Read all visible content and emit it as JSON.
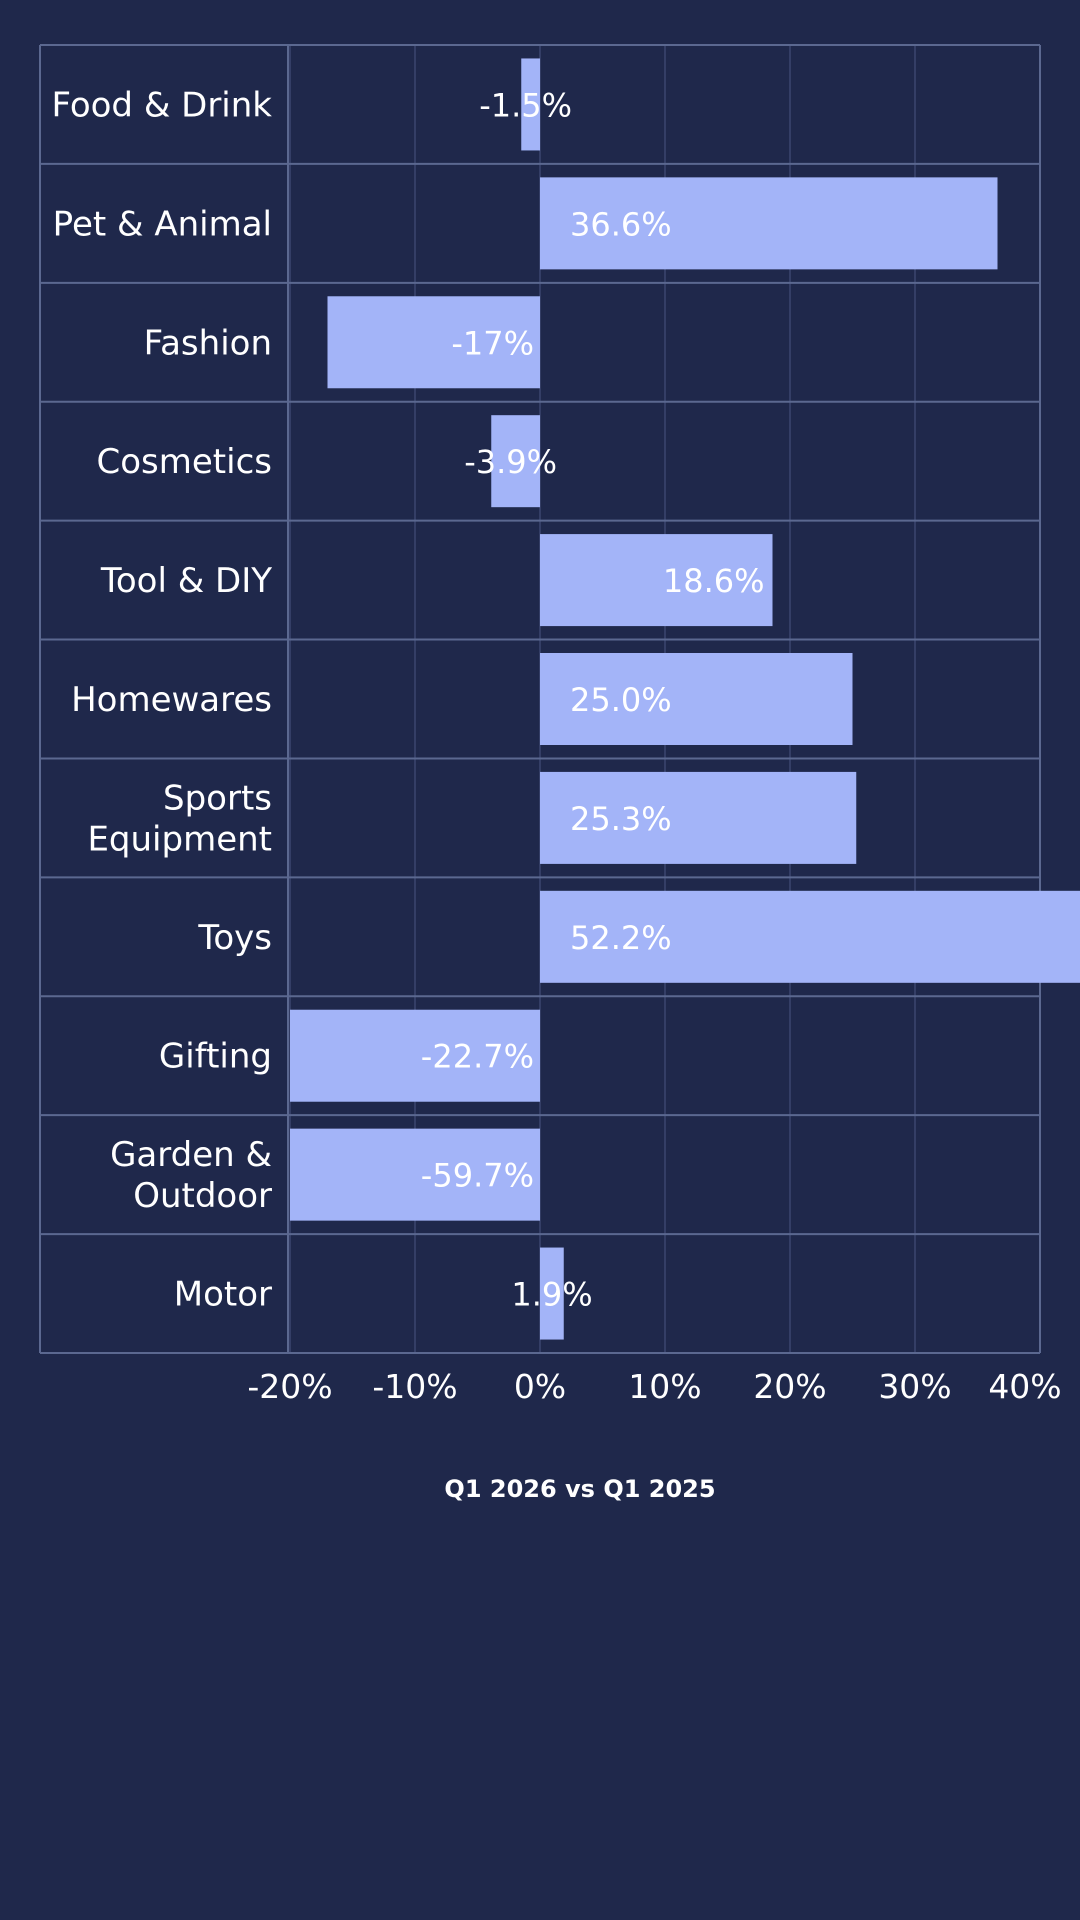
{
  "chart_data": {
    "type": "bar",
    "orientation": "horizontal",
    "categories": [
      "Food & Drink",
      "Pet & Animal",
      "Fashion",
      "Cosmetics",
      "Tool & DIY",
      "Homewares",
      "Sports Equipment",
      "Toys",
      "Gifting",
      "Garden & Outdoor",
      "Motor"
    ],
    "category_lines": [
      [
        "Food & Drink"
      ],
      [
        "Pet & Animal"
      ],
      [
        "Fashion"
      ],
      [
        "Cosmetics"
      ],
      [
        "Tool & DIY"
      ],
      [
        "Homewares"
      ],
      [
        "Sports",
        "Equipment"
      ],
      [
        "Toys"
      ],
      [
        "Gifting"
      ],
      [
        "Garden &",
        "Outdoor"
      ],
      [
        "Motor"
      ]
    ],
    "values": [
      -1.5,
      36.6,
      -17,
      -3.9,
      18.6,
      25.0,
      25.3,
      52.2,
      -22.7,
      -59.7,
      1.9
    ],
    "value_labels": [
      "-1.5%",
      "36.6%",
      "-17%",
      "-3.9%",
      "18.6%",
      "25.0%",
      "25.3%",
      "52.2%",
      "-22.7%",
      "-59.7%",
      "1.9%"
    ],
    "xlim": [
      -20,
      40
    ],
    "x_ticks": [
      -20,
      -10,
      0,
      10,
      20,
      30,
      40
    ],
    "x_tick_labels": [
      "-20%",
      "-10%",
      "0%",
      "10%",
      "20%",
      "30%",
      "40%"
    ],
    "xlabel": "Q1 2026 vs Q1 2025",
    "ylabel": "",
    "title": "",
    "grid": true,
    "legend": "none",
    "colors": {
      "background": "#1f284b",
      "bar": "#a3b4f8",
      "grid": "#3b4670",
      "border": "#5b6890",
      "text": "#ffffff"
    }
  }
}
